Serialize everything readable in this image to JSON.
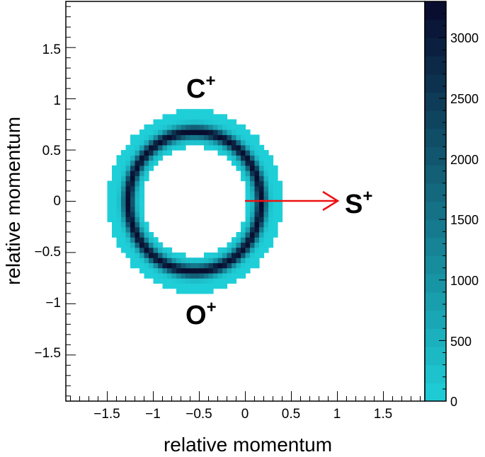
{
  "chart_data": {
    "type": "heatmap",
    "title": "",
    "xlabel": "relative momentum",
    "ylabel": "relative momentum",
    "xlim": [
      -1.95,
      1.95
    ],
    "ylim": [
      -1.95,
      1.95
    ],
    "x_ticks": [
      "−1.5",
      "−1",
      "−0.5",
      "0",
      "0.5",
      "1",
      "1.5"
    ],
    "y_ticks": [
      "1.5",
      "1",
      "0.5",
      "0",
      "−0.5",
      "−1",
      "−1.5"
    ],
    "colorbar": {
      "range": [
        0,
        3300
      ],
      "ticks": [
        "0",
        "500",
        "1000",
        "1500",
        "2000",
        "2500",
        "3000"
      ],
      "low_color": "#1fcfd8",
      "high_color": "#080a2c"
    },
    "ring": {
      "center": [
        -0.55,
        0.0
      ],
      "peak_radius_x": 0.72,
      "peak_radius_y": 0.68,
      "peak_counts": 3250,
      "outer_extent_radius": 0.92,
      "inner_extent_radius": 0.55,
      "gap_y_range": [
        -0.1,
        0.1
      ],
      "gap_x_from": -0.9
    },
    "annotations": {
      "top_label": {
        "base": "C",
        "sup": "+",
        "x": -0.5,
        "y": 1.05
      },
      "bottom_label": {
        "base": "O",
        "sup": "+",
        "x": -0.55,
        "y": -1.08
      },
      "arrow": {
        "from": [
          0.0,
          0.0
        ],
        "to": [
          1.0,
          0.0
        ],
        "color": "#ee1111"
      },
      "arrow_label": {
        "base": "S",
        "sup": "+",
        "x": 1.1,
        "y": 0.0
      }
    }
  }
}
